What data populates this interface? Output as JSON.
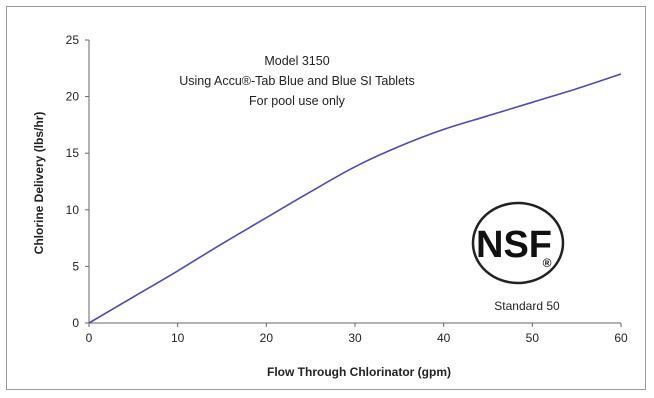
{
  "chart_data": {
    "type": "line",
    "title_lines": [
      "Model 3150",
      "Using Accu®-Tab Blue and Blue SI Tablets",
      "For pool use only"
    ],
    "xlabel": "Flow Through Chlorinator (gpm)",
    "ylabel": "Chlorine Delivery (lbs/hr)",
    "xlim": [
      0,
      60
    ],
    "ylim": [
      0,
      25
    ],
    "x_ticks": [
      0,
      10,
      20,
      30,
      40,
      50,
      60
    ],
    "y_ticks": [
      0,
      5,
      10,
      15,
      20,
      25
    ],
    "grid": false,
    "series": [
      {
        "color": "#4a4ab8",
        "x": [
          0,
          5,
          10,
          15,
          20,
          25,
          30,
          35,
          40,
          45,
          50,
          55,
          60
        ],
        "y": [
          0,
          2.3,
          4.6,
          7.0,
          9.3,
          11.6,
          13.8,
          15.6,
          17.1,
          18.3,
          19.5,
          20.7,
          22.0
        ]
      }
    ]
  },
  "badge": {
    "logo_text": "NSF",
    "registered_mark": "®",
    "standard_label": "Standard 50"
  }
}
